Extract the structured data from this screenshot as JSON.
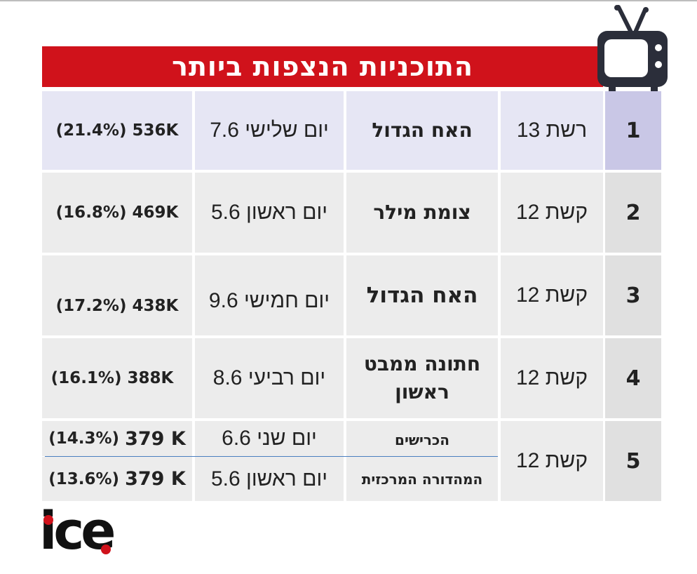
{
  "title": "התוכניות הנצפות ביותר",
  "rows": [
    {
      "rank": "1",
      "channel": "רשת 13",
      "program": "האח הגדול",
      "date": "יום שלישי 7.6",
      "views": "(21.4%) 536K"
    },
    {
      "rank": "2",
      "channel": "קשת 12",
      "program": "צומת מילר",
      "date": "יום ראשון 5.6",
      "views": "(16.8%) 469K"
    },
    {
      "rank": "3",
      "channel": "קשת 12",
      "program": "האח הגדול",
      "date": "יום חמישי 9.6",
      "views": "(17.2%) 438K"
    },
    {
      "rank": "4",
      "channel": "קשת 12",
      "program_line1": "חתונה ממבט",
      "program_line2": "ראשון",
      "date": "יום רביעי 8.6",
      "views": "(16.1%) 388K"
    },
    {
      "rank": "5",
      "channel": "קשת 12",
      "sub": [
        {
          "program": "הכרישים",
          "date": "יום שני 6.6",
          "share": "(14.3%)",
          "count": "379 K"
        },
        {
          "program": "המהדורה המרכזית",
          "date": "יום ראשון 5.6",
          "share": "(13.6%)",
          "count": "379 K"
        }
      ]
    }
  ],
  "logo": {
    "text": "ice"
  },
  "colors": {
    "banner": "#d0121b",
    "row_highlight": "#e6e6f4",
    "rank_highlight": "#c9c7e6",
    "row_gray": "#ececec",
    "rank_gray": "#e0e0e0"
  }
}
